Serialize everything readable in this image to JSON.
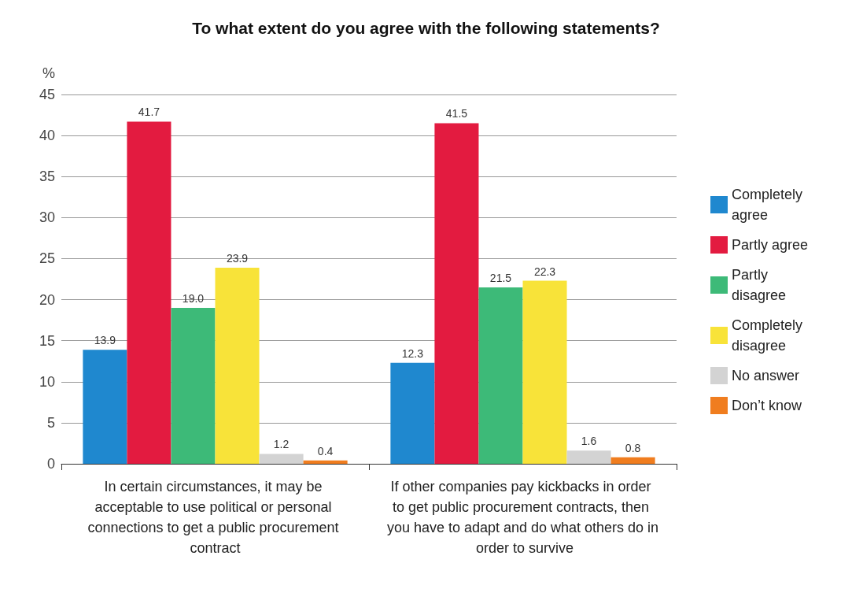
{
  "chart_data": {
    "type": "bar",
    "title": "To what extent do you agree with the following statements?",
    "ylabel": "%",
    "categories": [
      "In certain circumstances, it may be acceptable to use political or personal connections to get a public procurement contract",
      "If other companies pay kickbacks in order to get public procurement contracts, then you have to adapt and do what others do in order to survive"
    ],
    "series": [
      {
        "name": "Completely agree",
        "color": "#1f88cf",
        "values": [
          13.9,
          12.3
        ],
        "value_labels": [
          "13.9",
          "12.3"
        ]
      },
      {
        "name": "Partly agree",
        "color": "#e31b40",
        "values": [
          41.7,
          41.5
        ],
        "value_labels": [
          "41.7",
          "41.5"
        ]
      },
      {
        "name": "Partly disagree",
        "color": "#3dba78",
        "values": [
          19.0,
          21.5
        ],
        "value_labels": [
          "19.0",
          "21.5"
        ]
      },
      {
        "name": "Completely disagree",
        "color": "#f8e339",
        "values": [
          23.9,
          22.3
        ],
        "value_labels": [
          "23.9",
          "22.3"
        ]
      },
      {
        "name": "No answer",
        "color": "#d3d3d3",
        "values": [
          1.2,
          1.6
        ],
        "value_labels": [
          "1.2",
          "1.6"
        ]
      },
      {
        "name": "Don’t know",
        "color": "#f07d1f",
        "values": [
          0.4,
          0.8
        ],
        "value_labels": [
          "0.4",
          "0.8"
        ]
      }
    ],
    "ylim": [
      0,
      45
    ],
    "yticks": [
      0,
      5,
      10,
      15,
      20,
      25,
      30,
      35,
      40,
      45
    ],
    "grid": "y",
    "legend": "right"
  }
}
